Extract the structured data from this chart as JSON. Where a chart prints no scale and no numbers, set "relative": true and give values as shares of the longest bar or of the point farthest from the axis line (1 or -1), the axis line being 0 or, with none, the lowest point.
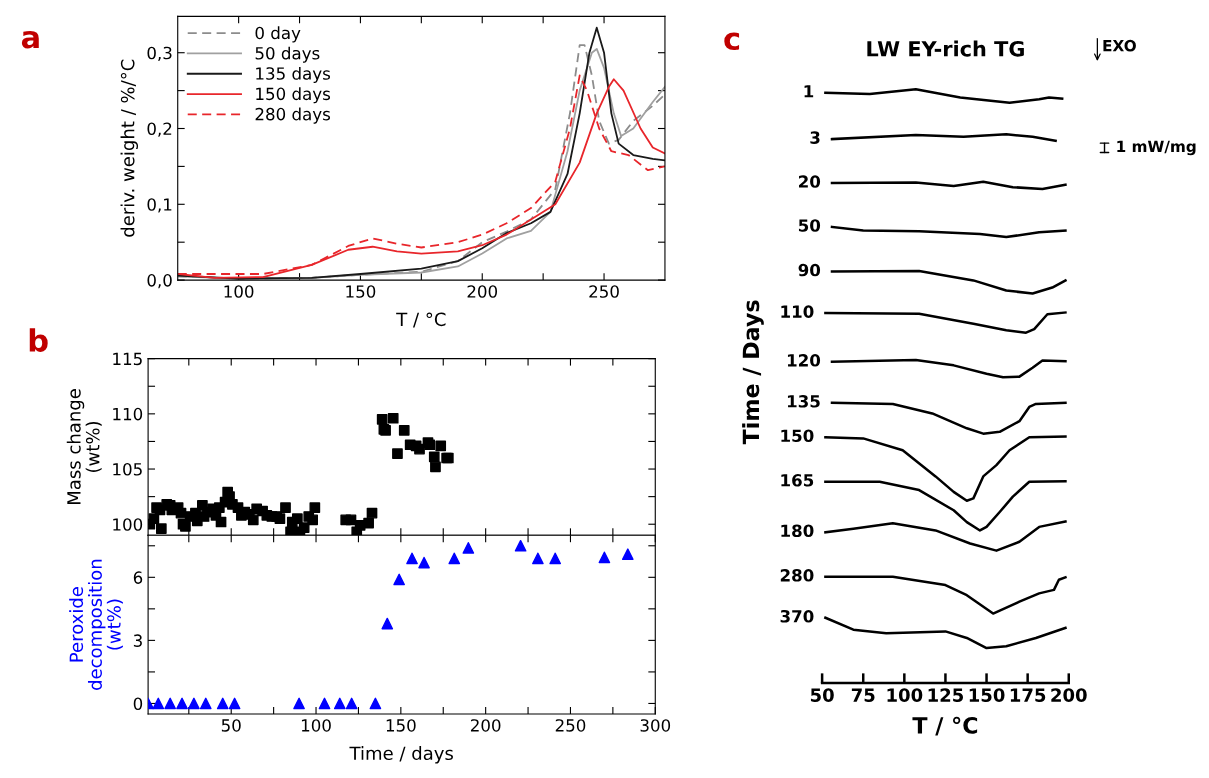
{
  "chart_data": [
    {
      "type": "line",
      "xlabel": "T / °C",
      "ylabel": "deriv. weight / %/°C",
      "annotations": [
        "a"
      ],
      "xlim": [
        75,
        275
      ],
      "ylim": [
        0,
        0.348
      ],
      "xticks": [
        100,
        {
          "value": 125,
          "label": null
        },
        150,
        {
          "value": 175,
          "label": null
        },
        200,
        {
          "value": 225,
          "label": null
        },
        250
      ],
      "yticks": [
        {
          "value": 0,
          "label": "0,0"
        },
        {
          "value": 0.05,
          "label": null
        },
        {
          "value": 0.1,
          "label": "0,1"
        },
        {
          "value": 0.15,
          "label": null
        },
        {
          "value": 0.2,
          "label": "0,2"
        },
        {
          "value": 0.25,
          "label": null
        },
        {
          "value": 0.3,
          "label": "0,3"
        }
      ],
      "grid": false,
      "legend": "top left",
      "marker": "none",
      "series": [
        {
          "name": "0 day",
          "color": "#8c8c8c",
          "line_style": "dashed",
          "x": [
            75,
            100,
            130,
            150,
            175,
            190,
            200,
            210,
            220,
            230,
            236,
            240,
            242,
            245,
            248,
            252,
            256,
            262,
            270,
            275
          ],
          "values": [
            0.005,
            0.002,
            0.003,
            0.007,
            0.011,
            0.025,
            0.05,
            0.064,
            0.08,
            0.12,
            0.22,
            0.31,
            0.31,
            0.27,
            0.21,
            0.18,
            0.185,
            0.21,
            0.23,
            0.245
          ]
        },
        {
          "name": "50 days",
          "color": "#a0a0a0",
          "line_style": "solid",
          "x": [
            75,
            100,
            130,
            150,
            175,
            190,
            200,
            210,
            220,
            228,
            235,
            240,
            245,
            247,
            250,
            254,
            257,
            262,
            270,
            275
          ],
          "values": [
            0.005,
            0.002,
            0.003,
            0.007,
            0.01,
            0.018,
            0.035,
            0.055,
            0.065,
            0.09,
            0.17,
            0.25,
            0.3,
            0.305,
            0.28,
            0.22,
            0.19,
            0.2,
            0.235,
            0.255
          ]
        },
        {
          "name": "135 days",
          "color": "#1a1a1a",
          "line_style": "solid",
          "x": [
            75,
            100,
            130,
            150,
            175,
            190,
            200,
            210,
            220,
            228,
            235,
            240,
            244,
            247,
            250,
            253,
            256,
            262,
            270,
            275
          ],
          "values": [
            0.006,
            0.002,
            0.003,
            0.008,
            0.015,
            0.025,
            0.042,
            0.062,
            0.075,
            0.09,
            0.14,
            0.22,
            0.3,
            0.333,
            0.3,
            0.22,
            0.18,
            0.165,
            0.16,
            0.158
          ]
        },
        {
          "name": "150 days",
          "color": "#e8262b",
          "line_style": "solid",
          "x": [
            75,
            90,
            110,
            130,
            145,
            155,
            165,
            175,
            190,
            200,
            210,
            220,
            230,
            240,
            247,
            252,
            254,
            258,
            265,
            270,
            275
          ],
          "values": [
            0.008,
            0.003,
            0.004,
            0.02,
            0.04,
            0.044,
            0.038,
            0.035,
            0.038,
            0.046,
            0.06,
            0.08,
            0.1,
            0.155,
            0.22,
            0.255,
            0.265,
            0.25,
            0.2,
            0.175,
            0.167
          ]
        },
        {
          "name": "280 days",
          "color": "#e8262b",
          "line_style": "dashed",
          "x": [
            75,
            110,
            130,
            145,
            155,
            165,
            175,
            190,
            200,
            210,
            220,
            230,
            236,
            240,
            243,
            248,
            253,
            260,
            268,
            275
          ],
          "values": [
            0.008,
            0.008,
            0.02,
            0.045,
            0.055,
            0.048,
            0.043,
            0.05,
            0.06,
            0.075,
            0.095,
            0.13,
            0.2,
            0.27,
            0.25,
            0.2,
            0.17,
            0.165,
            0.145,
            0.15
          ]
        }
      ]
    },
    {
      "type": "scatter",
      "ylabel": "Mass change\n(wt%)",
      "annotations": [
        "b"
      ],
      "xlim": [
        1,
        300
      ],
      "ylim": [
        99,
        115
      ],
      "tick_labels": "y",
      "xticks": [
        {
          "value": 25,
          "label": null
        },
        {
          "value": 50,
          "label": null
        },
        {
          "value": 75,
          "label": null
        },
        {
          "value": 100,
          "label": null
        },
        {
          "value": 125,
          "label": null
        },
        {
          "value": 150,
          "label": null
        },
        {
          "value": 175,
          "label": null
        },
        {
          "value": 200,
          "label": null
        },
        {
          "value": 225,
          "label": null
        },
        {
          "value": 250,
          "label": null
        },
        {
          "value": 275,
          "label": null
        }
      ],
      "yticks": [
        100,
        {
          "value": 102.5,
          "label": null
        },
        105,
        {
          "value": 107.5,
          "label": null
        },
        110,
        {
          "value": 112.5,
          "label": null
        },
        115
      ],
      "grid": false,
      "marker": "square",
      "series": [
        {
          "color": "#000000",
          "x": [
            2,
            4.4,
            6,
            8,
            8.8,
            12,
            14,
            15,
            18.7,
            20.4,
            21.6,
            23,
            25.8,
            28.9,
            30,
            33,
            34,
            36,
            39,
            41,
            43,
            44,
            46.4,
            47.9,
            49,
            50.7,
            54,
            56,
            58,
            60.7,
            63,
            65,
            68.5,
            71,
            74,
            76.8,
            78.7,
            82,
            85,
            86,
            89,
            90.5,
            93,
            95.7,
            98,
            99.3,
            117.5,
            120.6,
            124,
            126,
            131,
            133,
            139,
            140,
            141,
            145.5,
            148,
            152,
            155.5,
            159,
            161,
            166,
            167,
            169.7,
            170.4,
            173.5,
            177,
            178
          ],
          "values": [
            100.0,
            100.5,
            101.5,
            101.3,
            99.6,
            101.8,
            101.7,
            101.3,
            101.5,
            101.0,
            100.0,
            99.8,
            100.7,
            101.0,
            100.3,
            101.7,
            100.7,
            101.1,
            101.4,
            100.8,
            101.5,
            100.2,
            102.0,
            102.9,
            102.5,
            101.8,
            101.5,
            100.8,
            101.1,
            100.9,
            100.4,
            101.4,
            101.2,
            100.8,
            100.7,
            100.7,
            100.5,
            101.5,
            99.3,
            100.2,
            100.5,
            99.3,
            99.7,
            100.7,
            100.4,
            101.5,
            100.4,
            100.4,
            99.3,
            99.9,
            100.1,
            101.0,
            109.5,
            108.6,
            108.5,
            109.6,
            106.4,
            108.5,
            107.2,
            107.1,
            106.8,
            107.4,
            107.2,
            106.1,
            105.2,
            107.1,
            106.0,
            106.0
          ]
        }
      ]
    },
    {
      "type": "scatter",
      "xlabel": "Time / days",
      "ylabel": "Peroxide\ndecomposition\n(wt%)",
      "xlim": [
        1,
        300
      ],
      "ylim": [
        -0.5,
        8
      ],
      "xticks": [
        {
          "value": 25,
          "label": null
        },
        50,
        {
          "value": 75,
          "label": null
        },
        100,
        {
          "value": 125,
          "label": null
        },
        150,
        {
          "value": 175,
          "label": null
        },
        200,
        {
          "value": 225,
          "label": null
        },
        250,
        {
          "value": 275,
          "label": null
        },
        300
      ],
      "yticks": [
        0,
        {
          "value": 1.5,
          "label": null
        },
        3,
        {
          "value": 4.5,
          "label": null
        },
        6,
        {
          "value": 7.5,
          "label": null
        }
      ],
      "grid": false,
      "marker": "triangle",
      "series": [
        {
          "color": "#0000ff",
          "x": [
            1,
            7,
            14,
            21,
            28,
            35,
            45,
            52,
            90,
            105,
            114,
            121,
            135,
            142,
            149,
            156.6,
            163.7,
            181.5,
            189.8,
            220.6,
            230.8,
            241,
            270,
            283.8
          ],
          "values": [
            0,
            0,
            0,
            0,
            0,
            0,
            0,
            0,
            0,
            0,
            0,
            0,
            0,
            3.8,
            5.9,
            6.9,
            6.7,
            6.9,
            7.4,
            7.5,
            6.9,
            6.9,
            6.95,
            7.1
          ]
        }
      ]
    },
    {
      "type": "line",
      "relative": true,
      "title": "LW EY-rich TG",
      "xlabel": "T / °C",
      "ylabel": "Time / Days",
      "annotations": [
        "c",
        "EXO",
        "1 mW/mg"
      ],
      "xlim": [
        50,
        200
      ],
      "xticks": [
        50,
        75,
        100,
        125,
        150,
        175,
        200
      ],
      "tick_labels": "x",
      "grid": false,
      "marker": "none",
      "series": [
        {
          "name": "1",
          "color": "#000000",
          "x": [
            52,
            79,
            107,
            134,
            164,
            182,
            188,
            196
          ],
          "values": [
            0.994,
            0.992,
            1.0,
            0.986,
            0.977,
            0.983,
            0.986,
            0.984
          ]
        },
        {
          "name": "3",
          "color": "#000000",
          "x": [
            56,
            107,
            136,
            162,
            178,
            192
          ],
          "values": [
            0.916,
            0.923,
            0.92,
            0.924,
            0.92,
            0.913
          ]
        },
        {
          "name": "20",
          "color": "#000000",
          "x": [
            56,
            107,
            130,
            148,
            166,
            184,
            198
          ],
          "values": [
            0.842,
            0.843,
            0.837,
            0.844,
            0.835,
            0.832,
            0.839
          ]
        },
        {
          "name": "50",
          "color": "#000000",
          "x": [
            56,
            75,
            109,
            146,
            162,
            182,
            198
          ],
          "values": [
            0.768,
            0.762,
            0.761,
            0.756,
            0.751,
            0.759,
            0.762
          ]
        },
        {
          "name": "90",
          "color": "#000000",
          "x": [
            56,
            109,
            142,
            162,
            178,
            190,
            198
          ],
          "values": [
            0.693,
            0.694,
            0.678,
            0.661,
            0.656,
            0.666,
            0.678
          ]
        },
        {
          "name": "110",
          "color": "#000000",
          "x": [
            52,
            109,
            142,
            162,
            174,
            179,
            187,
            198
          ],
          "values": [
            0.623,
            0.622,
            0.605,
            0.594,
            0.59,
            0.596,
            0.621,
            0.624
          ]
        },
        {
          "name": "120",
          "color": "#000000",
          "x": [
            56,
            107,
            130,
            150,
            160,
            170,
            178,
            184,
            198
          ],
          "values": [
            0.541,
            0.544,
            0.535,
            0.521,
            0.515,
            0.516,
            0.531,
            0.543,
            0.542
          ]
        },
        {
          "name": "135",
          "color": "#000000",
          "x": [
            56,
            93,
            117,
            138,
            148,
            158,
            170,
            176,
            180,
            198
          ],
          "values": [
            0.472,
            0.47,
            0.454,
            0.429,
            0.42,
            0.423,
            0.441,
            0.465,
            0.47,
            0.472
          ]
        },
        {
          "name": "150",
          "color": "#000000",
          "x": [
            52,
            75,
            99,
            119,
            130,
            138,
            142,
            148,
            156,
            164,
            176,
            198
          ],
          "values": [
            0.414,
            0.412,
            0.392,
            0.348,
            0.322,
            0.307,
            0.311,
            0.348,
            0.367,
            0.392,
            0.414,
            0.415
          ]
        },
        {
          "name": "165",
          "color": "#000000",
          "x": [
            52,
            85,
            109,
            130,
            138,
            146,
            150,
            158,
            166,
            176,
            198
          ],
          "values": [
            0.339,
            0.339,
            0.325,
            0.291,
            0.271,
            0.257,
            0.263,
            0.288,
            0.314,
            0.339,
            0.34
          ]
        },
        {
          "name": "180",
          "color": "#000000",
          "x": [
            52,
            69,
            93,
            119,
            140,
            156,
            170,
            182,
            198
          ],
          "values": [
            0.254,
            0.26,
            0.269,
            0.257,
            0.235,
            0.223,
            0.238,
            0.263,
            0.272
          ]
        },
        {
          "name": "280",
          "color": "#000000",
          "x": [
            52,
            93,
            125,
            138,
            154,
            170,
            182,
            191,
            194,
            198
          ],
          "values": [
            0.179,
            0.179,
            0.165,
            0.148,
            0.117,
            0.137,
            0.151,
            0.157,
            0.174,
            0.178
          ]
        },
        {
          "name": "370",
          "color": "#000000",
          "x": [
            52,
            69,
            89,
            125,
            138,
            150,
            162,
            180,
            198
          ],
          "values": [
            0.11,
            0.09,
            0.084,
            0.087,
            0.076,
            0.059,
            0.062,
            0.076,
            0.093
          ]
        }
      ]
    }
  ]
}
